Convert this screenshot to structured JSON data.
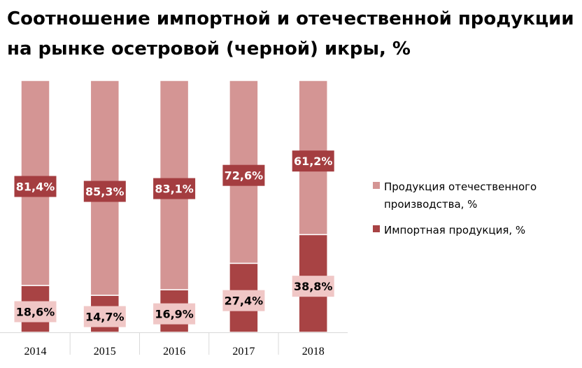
{
  "chart_data": {
    "type": "bar",
    "stacked": true,
    "percent": true,
    "title": "Соотношение импортной и отечественной продукции на рынке осетровой (черной) икры, %",
    "categories": [
      "2014",
      "2015",
      "2016",
      "2017",
      "2018"
    ],
    "series": [
      {
        "name": "Импортная продукция, %",
        "values": [
          18.6,
          14.7,
          16.9,
          27.4,
          38.8
        ],
        "labels": [
          "18,6%",
          "14,7%",
          "16,9%",
          "27,4%",
          "38,8%"
        ],
        "color": "#a84344",
        "label_box_color": "#f0c7c6",
        "label_text_color": "#000000"
      },
      {
        "name": "Продукция отечественного производства, %",
        "values": [
          81.4,
          85.3,
          83.1,
          72.6,
          61.2
        ],
        "labels": [
          "81,4%",
          "85,3%",
          "83,1%",
          "72,6%",
          "61,2%"
        ],
        "color": "#d49594",
        "label_box_color": "#a43d40",
        "label_text_color": "#ffffff"
      }
    ],
    "ylim": [
      0,
      100
    ],
    "legend_position": "right",
    "legend_order": [
      1,
      0
    ],
    "grid": false,
    "xlabel": "",
    "ylabel": ""
  }
}
